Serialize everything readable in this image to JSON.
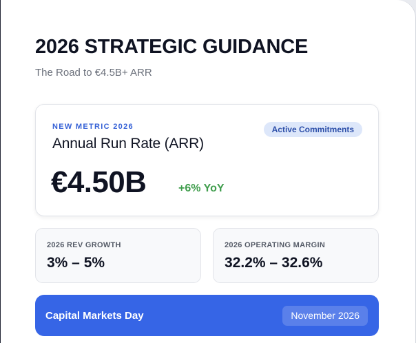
{
  "header": {
    "title": "2026 STRATEGIC GUIDANCE",
    "subtitle": "The Road to €4.5B+ ARR"
  },
  "hero": {
    "eyebrow": "NEW METRIC 2026",
    "label": "Annual Run Rate (ARR)",
    "badge": "Active Commitments",
    "value": "€4.50B",
    "delta": "+6% YoY"
  },
  "stats": [
    {
      "label": "2026 REV GROWTH",
      "value": "3% – 5%"
    },
    {
      "label": "2026 OPERATING MARGIN",
      "value": "32.2% – 32.6%"
    }
  ],
  "event": {
    "label": "Capital Markets Day",
    "date": "November 2026"
  },
  "colors": {
    "accent": "#3665e6",
    "eyebrow": "#3460d6",
    "positive": "#3f9d4c",
    "badge_bg": "#dde7fa",
    "text": "#0f1322"
  }
}
